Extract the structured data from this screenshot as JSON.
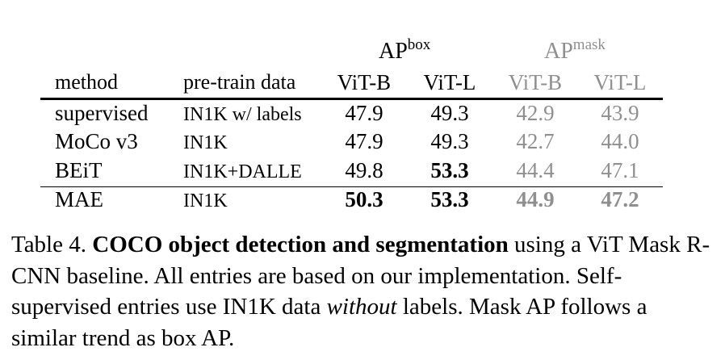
{
  "table": {
    "group_headers": {
      "box": {
        "main": "AP",
        "sup": "box"
      },
      "mask": {
        "main": "AP",
        "sup": "mask"
      }
    },
    "columns": {
      "method": "method",
      "pretrain": "pre-train data",
      "box_vitb": "ViT-B",
      "box_vitl": "ViT-L",
      "mask_vitb": "ViT-B",
      "mask_vitl": "ViT-L"
    },
    "rows": [
      {
        "method": "supervised",
        "pretrain": "IN1K w/ labels",
        "box_vitb": "47.9",
        "box_vitl": "49.3",
        "mask_vitb": "42.9",
        "mask_vitl": "43.9"
      },
      {
        "method": "MoCo v3",
        "pretrain": "IN1K",
        "box_vitb": "47.9",
        "box_vitl": "49.3",
        "mask_vitb": "42.7",
        "mask_vitl": "44.0"
      },
      {
        "method": "BEiT",
        "pretrain": "IN1K+DALLE",
        "box_vitb": "49.8",
        "box_vitl": "53.3",
        "mask_vitb": "44.4",
        "mask_vitl": "47.1"
      },
      {
        "method": "MAE",
        "pretrain": "IN1K",
        "box_vitb": "50.3",
        "box_vitl": "53.3",
        "mask_vitb": "44.9",
        "mask_vitl": "47.2"
      }
    ]
  },
  "caption": {
    "label": "Table 4.",
    "title": "COCO object detection and segmentation",
    "text1": "using a ViT Mask R-CNN baseline. All entries are based on our implementation. Self-supervised entries use IN1K data",
    "emph": "without",
    "text2": "labels. Mask AP follows a similar trend as box AP."
  }
}
